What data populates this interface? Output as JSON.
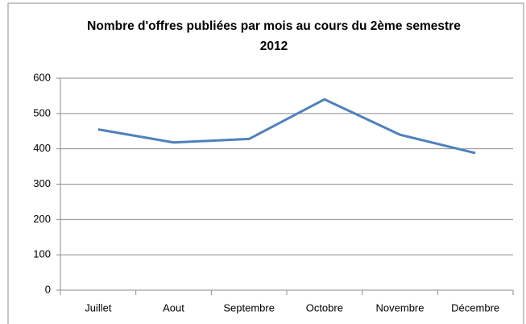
{
  "chart_data": {
    "type": "line",
    "title": "Nombre d'offres publiées par mois au cours du 2ème semestre 2012",
    "categories": [
      "Juillet",
      "Aout",
      "Septembre",
      "Octobre",
      "Novembre",
      "Décembre"
    ],
    "series": [
      {
        "color": "#4f81bd",
        "values": [
          455,
          418,
          428,
          540,
          440,
          388
        ]
      }
    ],
    "ylim": [
      0,
      600
    ],
    "yticks": [
      0,
      100,
      200,
      300,
      400,
      500,
      600
    ],
    "grid": true
  }
}
